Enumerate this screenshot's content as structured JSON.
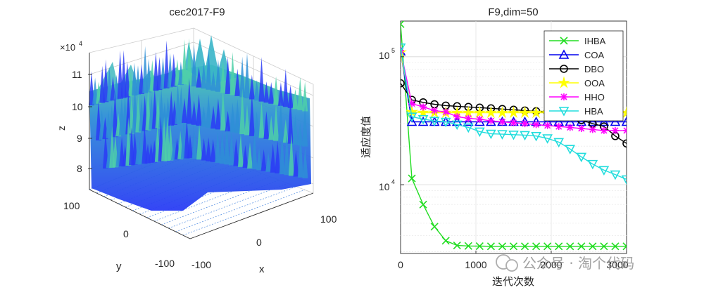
{
  "chart_data": [
    {
      "type": "surface3d",
      "title": "cec2017-F9",
      "xlabel": "x",
      "ylabel": "y",
      "zlabel": "z",
      "z_exponent_label": "×10",
      "z_exponent_power": "4",
      "x_ticks": [
        "-100",
        "0",
        "100"
      ],
      "y_ticks": [
        "100",
        "0",
        "-100"
      ],
      "z_ticks": [
        "11",
        "10",
        "9",
        "8"
      ],
      "zlim": [
        7.5,
        11.5
      ],
      "colors": {
        "low": "#2a3cf5",
        "mid": "#2e8fd6",
        "high": "#4dd0a8",
        "contour": "#4a88e0"
      }
    },
    {
      "type": "line",
      "yscale": "log",
      "title": "F9,dim=50",
      "xlabel": "迭代次数",
      "ylabel": "适应度值",
      "xlim": [
        0,
        3000
      ],
      "ylim": [
        2900,
        190000
      ],
      "x_ticks": [
        "0",
        "1000",
        "2000",
        "3000"
      ],
      "y_tick_labels": [
        {
          "base": "10",
          "power": "4",
          "value": 10000
        },
        {
          "base": "10",
          "power": "5",
          "value": 100000
        }
      ],
      "legend_position": "top-right",
      "series": [
        {
          "name": "IHBA",
          "color": "#22dd22",
          "marker": "x",
          "x": [
            0,
            150,
            300,
            450,
            600,
            750,
            900,
            1050,
            1200,
            1350,
            1500,
            1650,
            1800,
            1950,
            2100,
            2250,
            2400,
            2550,
            2700,
            2850,
            3000
          ],
          "values": [
            180000,
            11200,
            7000,
            4700,
            3650,
            3350,
            3320,
            3310,
            3300,
            3300,
            3300,
            3300,
            3300,
            3300,
            3300,
            3300,
            3300,
            3300,
            3300,
            3300,
            3300
          ]
        },
        {
          "name": "COA",
          "color": "#0000ee",
          "marker": "triangle",
          "x": [
            0,
            150,
            300,
            450,
            600,
            750,
            900,
            1050,
            1200,
            1350,
            1500,
            1650,
            1800,
            1950,
            2100,
            2250,
            2400,
            2550,
            2700,
            2850,
            3000
          ],
          "values": [
            110000,
            31000,
            31000,
            31000,
            31000,
            31000,
            31000,
            31000,
            31000,
            31000,
            31000,
            31000,
            31000,
            31000,
            31000,
            31000,
            31000,
            31000,
            31000,
            31000,
            31000
          ]
        },
        {
          "name": "DBO",
          "color": "#000000",
          "marker": "circle",
          "x": [
            0,
            150,
            300,
            450,
            600,
            750,
            900,
            1050,
            1200,
            1350,
            1500,
            1650,
            1800,
            1950,
            2100,
            2250,
            2400,
            2550,
            2700,
            2850,
            3000
          ],
          "values": [
            62000,
            46000,
            44000,
            42500,
            41500,
            41000,
            40500,
            40000,
            39500,
            39000,
            38500,
            38000,
            37500,
            37000,
            36000,
            35000,
            32000,
            30000,
            28500,
            24000,
            21000
          ]
        },
        {
          "name": "OOA",
          "color": "#ffff00",
          "marker": "star",
          "x": [
            0,
            150,
            300,
            450,
            600,
            750,
            900,
            1050,
            1200,
            1350,
            1500,
            1650,
            1800,
            1950,
            2100,
            2250,
            2400,
            2550,
            2700,
            2850,
            3000
          ],
          "values": [
            108000,
            37000,
            36500,
            36500,
            36500,
            36500,
            36500,
            36500,
            36500,
            36500,
            36500,
            36500,
            36500,
            36500,
            36500,
            36500,
            36500,
            36500,
            36500,
            36500,
            36500
          ]
        },
        {
          "name": "HHO",
          "color": "#ff00ff",
          "marker": "asterisk",
          "x": [
            0,
            150,
            300,
            450,
            600,
            750,
            900,
            1050,
            1200,
            1350,
            1500,
            1650,
            1800,
            1950,
            2100,
            2250,
            2400,
            2550,
            2700,
            2850,
            3000
          ],
          "values": [
            112000,
            43000,
            40500,
            38000,
            37000,
            34000,
            33000,
            32500,
            31500,
            31000,
            30500,
            30000,
            29500,
            29000,
            28500,
            28000,
            27500,
            27000,
            26500,
            26500,
            26500
          ]
        },
        {
          "name": "HBA",
          "color": "#22dddd",
          "marker": "triangle-down",
          "x": [
            0,
            150,
            300,
            450,
            600,
            750,
            900,
            1050,
            1200,
            1350,
            1500,
            1650,
            1800,
            1950,
            2100,
            2250,
            2400,
            2550,
            2700,
            2850,
            3000
          ],
          "values": [
            118000,
            34000,
            32500,
            31500,
            31000,
            29500,
            28000,
            26000,
            25000,
            24800,
            24600,
            24400,
            24000,
            23000,
            21500,
            19000,
            16500,
            14500,
            13000,
            12000,
            11000
          ]
        }
      ]
    }
  ],
  "watermark": "公众号 · 淘个代码"
}
